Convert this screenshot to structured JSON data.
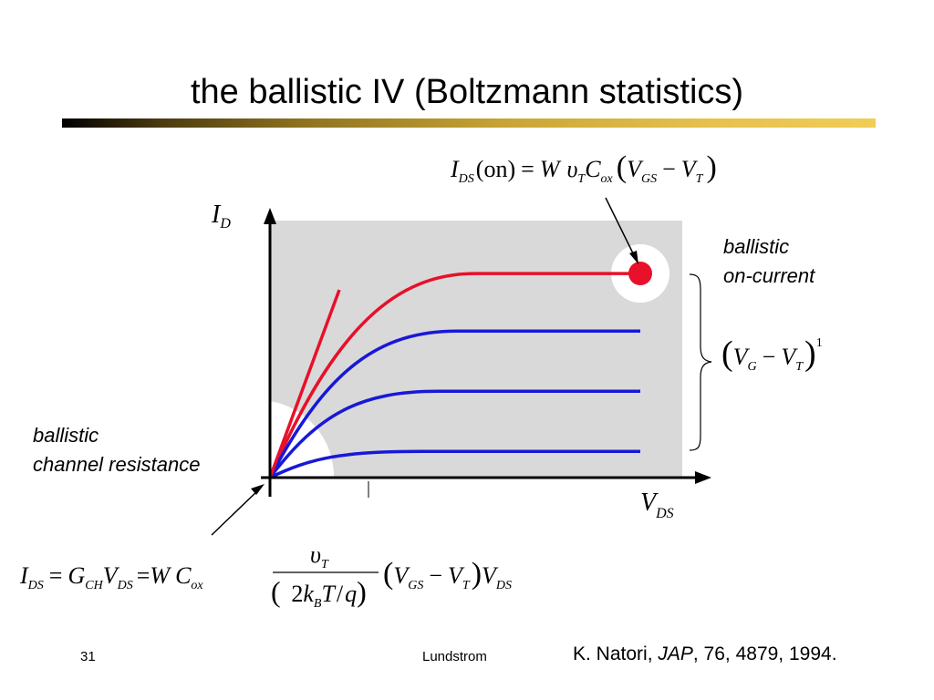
{
  "slide": {
    "title": "the ballistic IV (Boltzmann statistics)",
    "slide_number": "31",
    "author": "Lundstrom",
    "reference": {
      "authors": "K. Natori, ",
      "journal": "JAP",
      "details": ", 76, 4879, 1994."
    }
  },
  "diagram": {
    "axes": {
      "y_symbol": "I",
      "y_sub": "D",
      "x_symbol": "V",
      "x_sub": "DS"
    },
    "label_on_current_line1": "ballistic",
    "label_on_current_line2": "on-current",
    "label_resistance_line1": "ballistic",
    "label_resistance_line2": "channel resistance",
    "curve_levels": [
      0.78,
      0.56,
      0.33,
      0.1
    ],
    "curve_colors": [
      "#e8102a",
      "#1818d8",
      "#1818d8",
      "#1818d8"
    ],
    "equation_on": {
      "I": "I",
      "DS": "DS",
      "on": "(on)",
      "eq": "=",
      "W": "W",
      "upsilon": "υ",
      "T": "T",
      "C": "C",
      "ox": "ox",
      "V1": "V",
      "GS": "GS",
      "minus": "−",
      "V2": "V",
      "T2": "T"
    },
    "equation_vg": {
      "V1": "V",
      "G": "G",
      "minus": "−",
      "V2": "V",
      "T": "T",
      "exp": "1"
    },
    "equation_ch": {
      "I": "I",
      "DS": "DS",
      "eq1": "=",
      "G": "G",
      "CH": "CH",
      "V1": "V",
      "DS2": "DS",
      "eq2": "=",
      "W": "W",
      "C": "C",
      "ox": "ox",
      "num_upsilon": "υ",
      "num_T": "T",
      "den_open": "(2",
      "den_k": "k",
      "den_B": "B",
      "den_T": "T",
      "den_slash": "/",
      "den_q": "q",
      "den_close": ")",
      "V2": "V",
      "GS": "GS",
      "minus": "−",
      "V3": "V",
      "T2": "T",
      "V4": "V",
      "DS3": "DS"
    }
  }
}
